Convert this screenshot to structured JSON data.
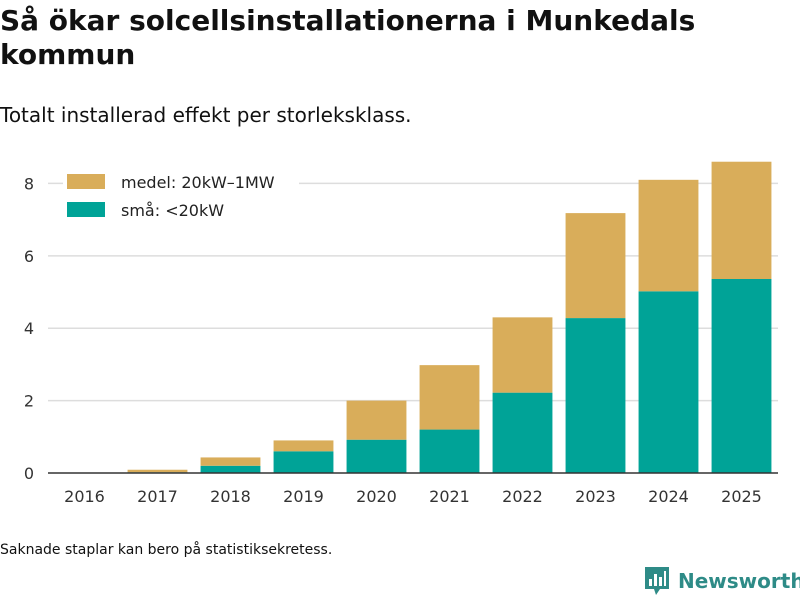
{
  "header": {
    "title": "Så ökar solcellsinstallationerna i Munkedals kommun",
    "subtitle": "Totalt installerad effekt per storleksklass."
  },
  "footer": {
    "note": "Saknade staplar kan bero på statistiksekretess.",
    "brand": "Newsworthy"
  },
  "colors": {
    "small": "#00a397",
    "medium": "#d9ad5a",
    "grid": "#dddddd",
    "axis": "#333333",
    "brand": "#2e8b87"
  },
  "chart_data": {
    "type": "bar",
    "stacked": true,
    "title": "Så ökar solcellsinstallationerna i Munkedals kommun",
    "subtitle": "Totalt installerad effekt per storleksklass.",
    "xlabel": "",
    "ylabel": "",
    "categories": [
      "2016",
      "2017",
      "2018",
      "2019",
      "2020",
      "2021",
      "2022",
      "2023",
      "2024",
      "2025"
    ],
    "series": [
      {
        "name": "små: <20kW",
        "color": "#00a397",
        "values": [
          0.0,
          0.02,
          0.2,
          0.6,
          0.92,
          1.2,
          2.22,
          4.28,
          5.02,
          5.36
        ]
      },
      {
        "name": "medel: 20kW–1MW",
        "color": "#d9ad5a",
        "values": [
          0.0,
          0.07,
          0.23,
          0.3,
          1.08,
          1.78,
          2.08,
          2.9,
          3.08,
          3.24
        ]
      }
    ],
    "legend_order": [
      "medel: 20kW–1MW",
      "små: <20kW"
    ],
    "legend_position": "top-left",
    "ylim": [
      0,
      9.2
    ],
    "yticks": [
      0,
      2,
      4,
      6,
      8
    ],
    "grid": true
  }
}
